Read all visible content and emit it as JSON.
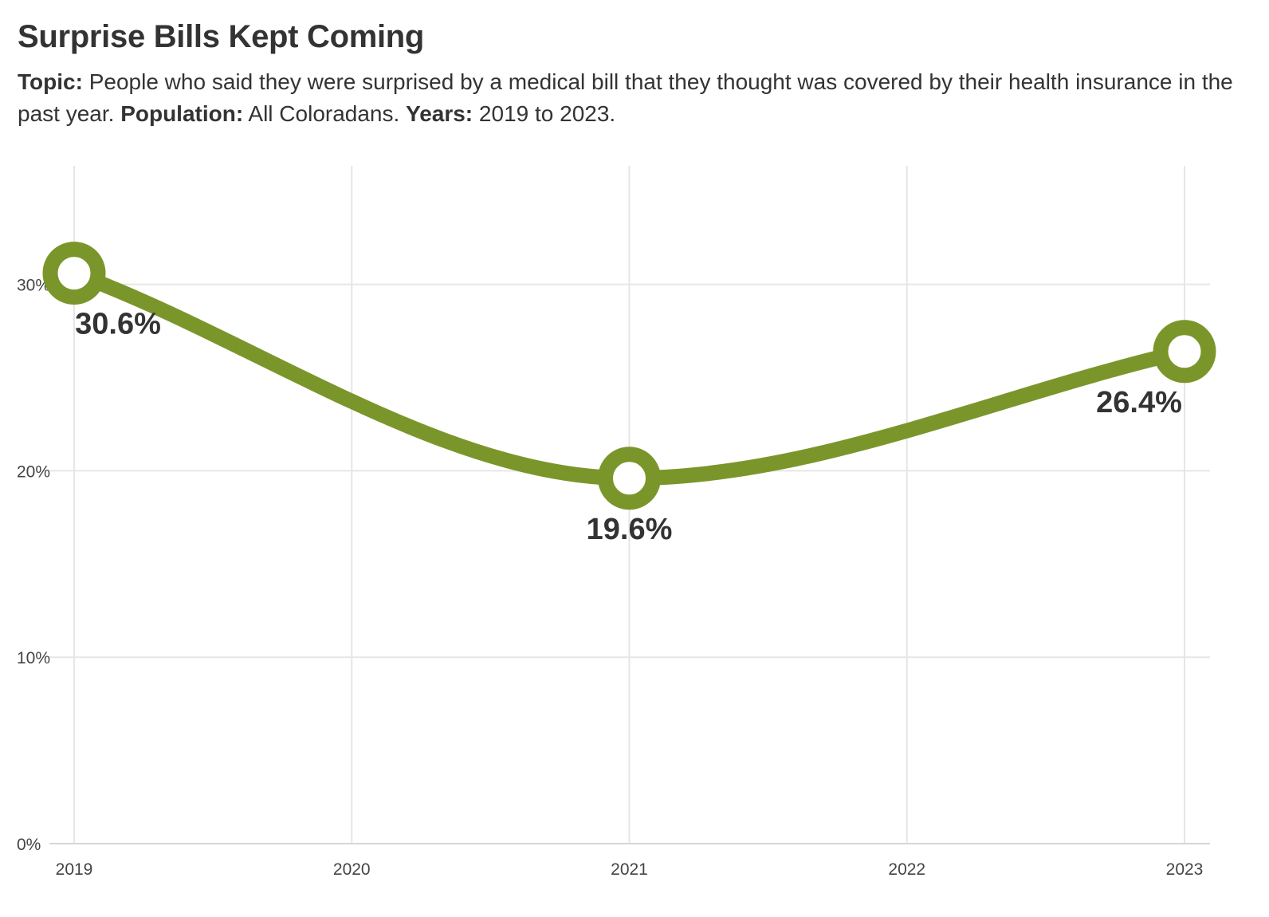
{
  "header": {
    "title": "Surprise Bills Kept Coming",
    "topic_label": "Topic:",
    "topic_text": "People who said they were surprised by a medical bill that they thought was covered by their health insurance in the past year.",
    "population_label": "Population:",
    "population_text": "All Coloradans.",
    "years_label": "Years:",
    "years_text": "2019 to 2023."
  },
  "colors": {
    "line": "#7a962b",
    "marker_fill": "#ffffff",
    "grid": "#e6e6e6",
    "text": "#333333"
  },
  "chart_data": {
    "type": "line",
    "x": [
      2019,
      2021,
      2023
    ],
    "values": [
      30.6,
      19.6,
      26.4
    ],
    "data_labels": [
      "30.6%",
      "19.6%",
      "26.4%"
    ],
    "xticks": [
      2019,
      2020,
      2021,
      2022,
      2023
    ],
    "xtick_labels": [
      "2019",
      "2020",
      "2021",
      "2022",
      "2023"
    ],
    "yticks": [
      0,
      10,
      20,
      30
    ],
    "ytick_labels": [
      "0%",
      "10%",
      "20%",
      "30%"
    ],
    "xlim": [
      2019,
      2023
    ],
    "ylim": [
      0,
      36.5
    ],
    "grid": true,
    "curve": "smooth"
  }
}
